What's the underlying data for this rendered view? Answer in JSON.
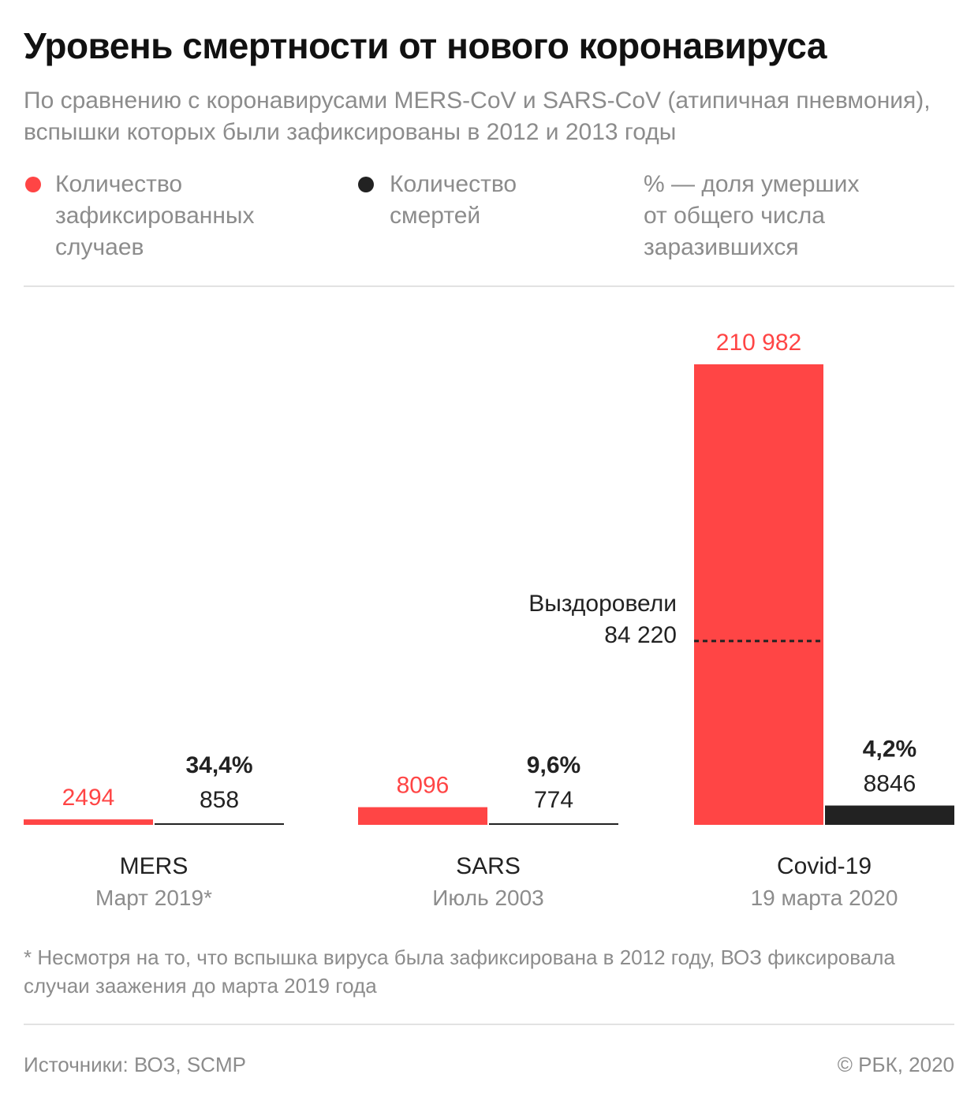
{
  "header": {
    "title": "Уровень смертности от нового коронавируса",
    "subtitle": "По сравнению с коронавирусами MERS-CoV и SARS-CoV (атипичная пневмония), вспышки которых были зафиксированы в 2012 и 2013 годы"
  },
  "legend": {
    "cases": "Количество\nзафиксированных\nслучаев",
    "deaths": "Количество\nсмертей",
    "percent": "% — доля умерших\nот общего числа\nзаразившихся"
  },
  "colors": {
    "cases": "#ff4545",
    "deaths": "#222222",
    "muted": "#8c8c8c",
    "rule": "#e2e2e2"
  },
  "chart_data": {
    "type": "bar",
    "title": "Уровень смертности от нового коронавируса",
    "categories": [
      "MERS",
      "SARS",
      "Covid-19"
    ],
    "dates": [
      "Март 2019*",
      "Июль 2003",
      "19 марта 2020"
    ],
    "series": [
      {
        "name": "Количество зафиксированных случаев",
        "values": [
          2494,
          8096,
          210982
        ],
        "labels": [
          "2494",
          "8096",
          "210 982"
        ]
      },
      {
        "name": "Количество смертей",
        "values": [
          858,
          774,
          8846
        ],
        "labels": [
          "858",
          "774",
          "8846"
        ]
      }
    ],
    "percent_labels": [
      "34,4%",
      "9,6%",
      "4,2%"
    ],
    "annotation": {
      "category": "Covid-19",
      "label": "Выздоровели",
      "value": 84220,
      "value_label": "84 220"
    },
    "grid": false,
    "legend": "top"
  },
  "footnote": "* Несмотря на то, что вспышка вируса была зафиксирована в 2012 году, ВОЗ фиксировала случаи заажения до марта 2019 года",
  "footer": {
    "source": "Источники: ВОЗ, SCMP",
    "copyright": "© РБК, 2020"
  }
}
